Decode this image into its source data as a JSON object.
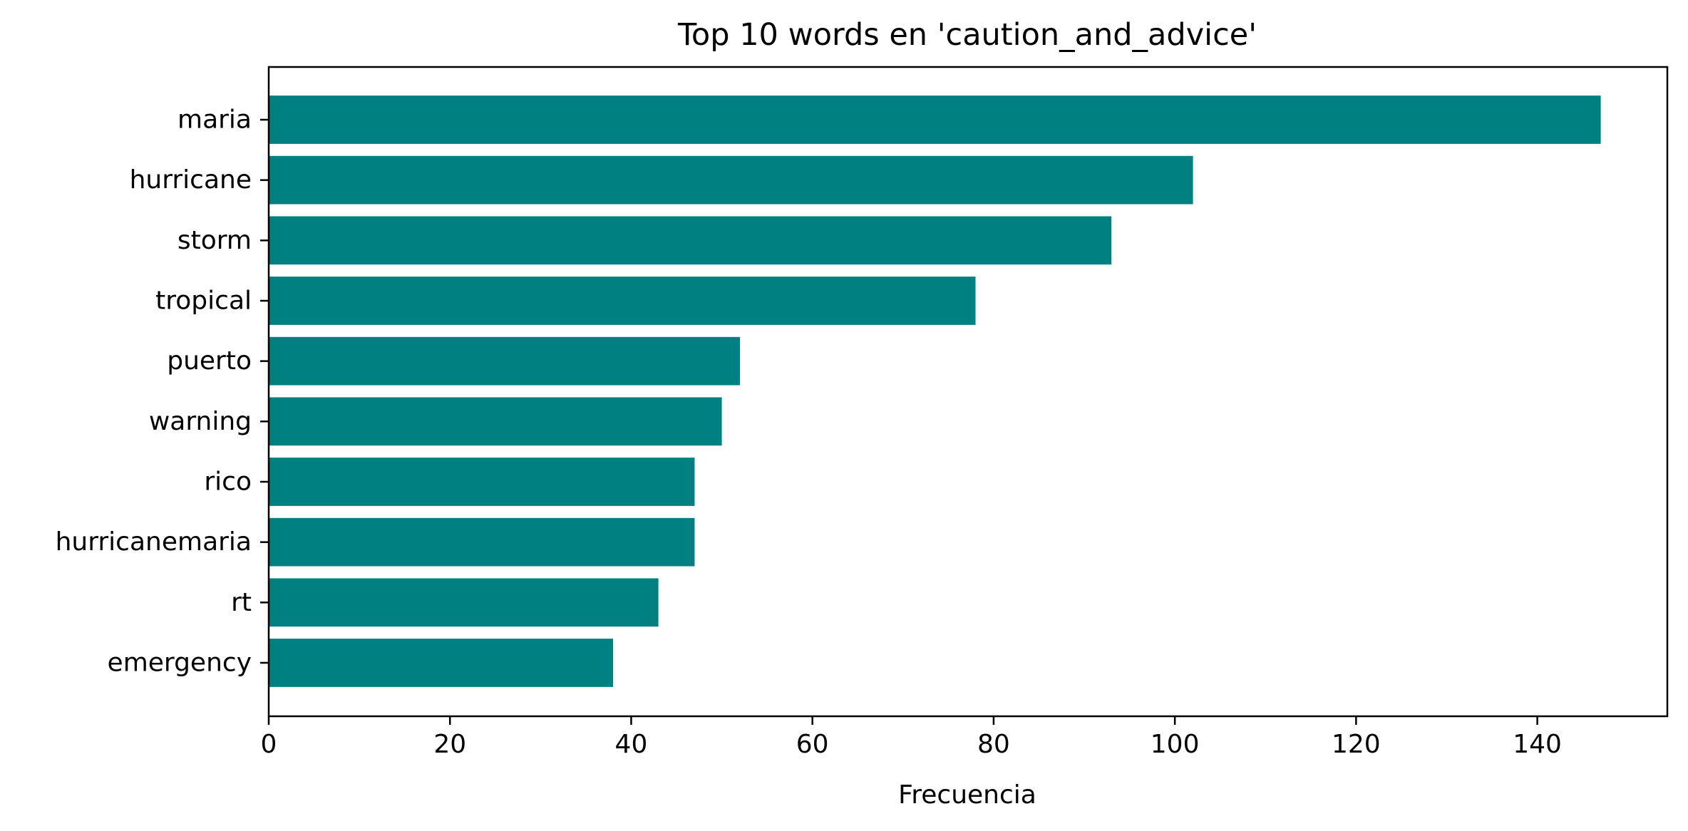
{
  "chart_data": {
    "type": "bar",
    "orientation": "horizontal",
    "title": "Top 10 words en 'caution_and_advice'",
    "xlabel": "Frecuencia",
    "ylabel": "",
    "categories": [
      "maria",
      "hurricane",
      "storm",
      "tropical",
      "puerto",
      "warning",
      "rico",
      "hurricanemaria",
      "rt",
      "emergency"
    ],
    "values": [
      147,
      102,
      93,
      78,
      52,
      50,
      47,
      47,
      43,
      38
    ],
    "xlim": [
      0,
      154.35
    ],
    "xticks": [
      0,
      20,
      40,
      60,
      80,
      100,
      120,
      140
    ],
    "grid": false,
    "bar_color": "#008080"
  }
}
